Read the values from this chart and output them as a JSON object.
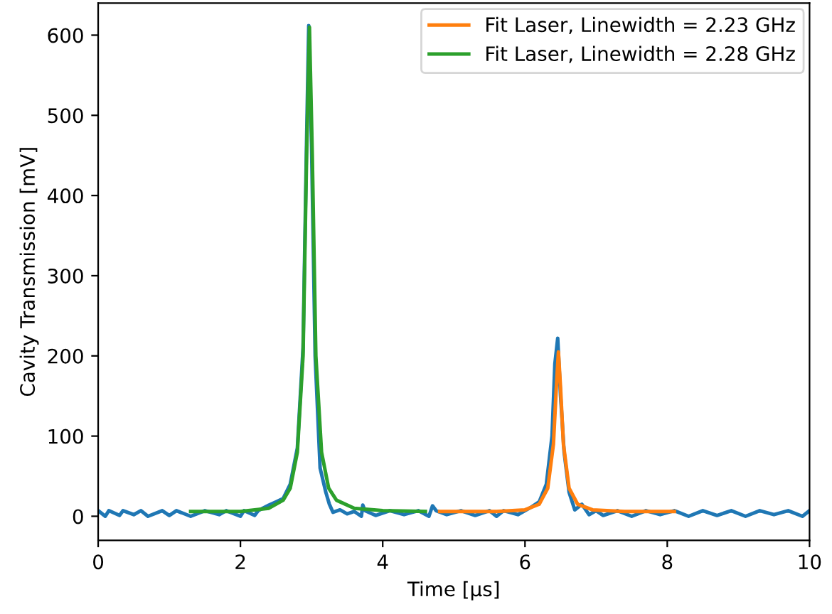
{
  "chart_data": {
    "type": "line",
    "xlabel": "Time [μs]",
    "ylabel": "Cavity Transmission [mV]",
    "xlim": [
      0,
      10
    ],
    "ylim": [
      -30,
      640
    ],
    "xticks": [
      0,
      2,
      4,
      6,
      8,
      10
    ],
    "yticks": [
      0,
      100,
      200,
      300,
      400,
      500,
      600
    ],
    "grid": false,
    "legend": "top right",
    "series": [
      {
        "color": "#1f77b4",
        "x": [
          0,
          0.1,
          0.15,
          0.3,
          0.35,
          0.5,
          0.6,
          0.7,
          0.9,
          1.0,
          1.1,
          1.3,
          1.5,
          1.7,
          1.8,
          2.0,
          2.05,
          2.2,
          2.25,
          2.4,
          2.5,
          2.6,
          2.7,
          2.8,
          2.88,
          2.93,
          2.96,
          3.0,
          3.05,
          3.12,
          3.2,
          3.25,
          3.3,
          3.4,
          3.5,
          3.6,
          3.7,
          3.72,
          3.75,
          3.9,
          4.1,
          4.3,
          4.5,
          4.65,
          4.7,
          4.75,
          4.9,
          5.1,
          5.3,
          5.5,
          5.6,
          5.7,
          5.9,
          6.0,
          6.1,
          6.2,
          6.3,
          6.38,
          6.42,
          6.46,
          6.5,
          6.55,
          6.62,
          6.7,
          6.8,
          6.9,
          7.0,
          7.1,
          7.3,
          7.5,
          7.7,
          7.9,
          8.1,
          8.3,
          8.5,
          8.7,
          8.9,
          9.1,
          9.3,
          9.5,
          9.7,
          9.9,
          10.0
        ],
        "values": [
          7,
          0,
          7,
          1,
          7,
          2,
          7,
          0,
          7,
          1,
          7,
          0,
          7,
          2,
          7,
          0,
          7,
          1,
          7,
          14,
          18,
          22,
          40,
          85,
          210,
          470,
          612,
          460,
          200,
          60,
          30,
          15,
          5,
          8,
          3,
          6,
          0,
          14,
          7,
          1,
          7,
          2,
          7,
          0,
          13,
          7,
          2,
          7,
          1,
          7,
          0,
          7,
          2,
          7,
          12,
          18,
          40,
          100,
          190,
          222,
          150,
          80,
          30,
          8,
          15,
          2,
          7,
          1,
          7,
          0,
          7,
          2,
          7,
          0,
          7,
          1,
          7,
          0,
          7,
          2,
          7,
          0,
          7
        ]
      },
      {
        "name": "Fit Laser, Linewidth = 2.23 GHz",
        "color": "#ff7f0e",
        "x": [
          4.8,
          5.6,
          6.0,
          6.2,
          6.32,
          6.4,
          6.44,
          6.47,
          6.5,
          6.54,
          6.62,
          6.74,
          6.95,
          7.4,
          8.1
        ],
        "values": [
          6,
          6,
          8,
          15,
          35,
          90,
          160,
          205,
          160,
          90,
          35,
          15,
          8,
          6,
          6
        ]
      },
      {
        "name": "Fit Laser, Linewidth = 2.28 GHz",
        "color": "#2ca02c",
        "x": [
          1.3,
          2.0,
          2.4,
          2.6,
          2.7,
          2.8,
          2.88,
          2.93,
          2.97,
          3.01,
          3.06,
          3.14,
          3.24,
          3.35,
          3.6,
          4.0,
          4.6
        ],
        "values": [
          6,
          6,
          10,
          20,
          35,
          80,
          200,
          450,
          610,
          450,
          200,
          80,
          35,
          20,
          10,
          7,
          6
        ]
      }
    ]
  }
}
